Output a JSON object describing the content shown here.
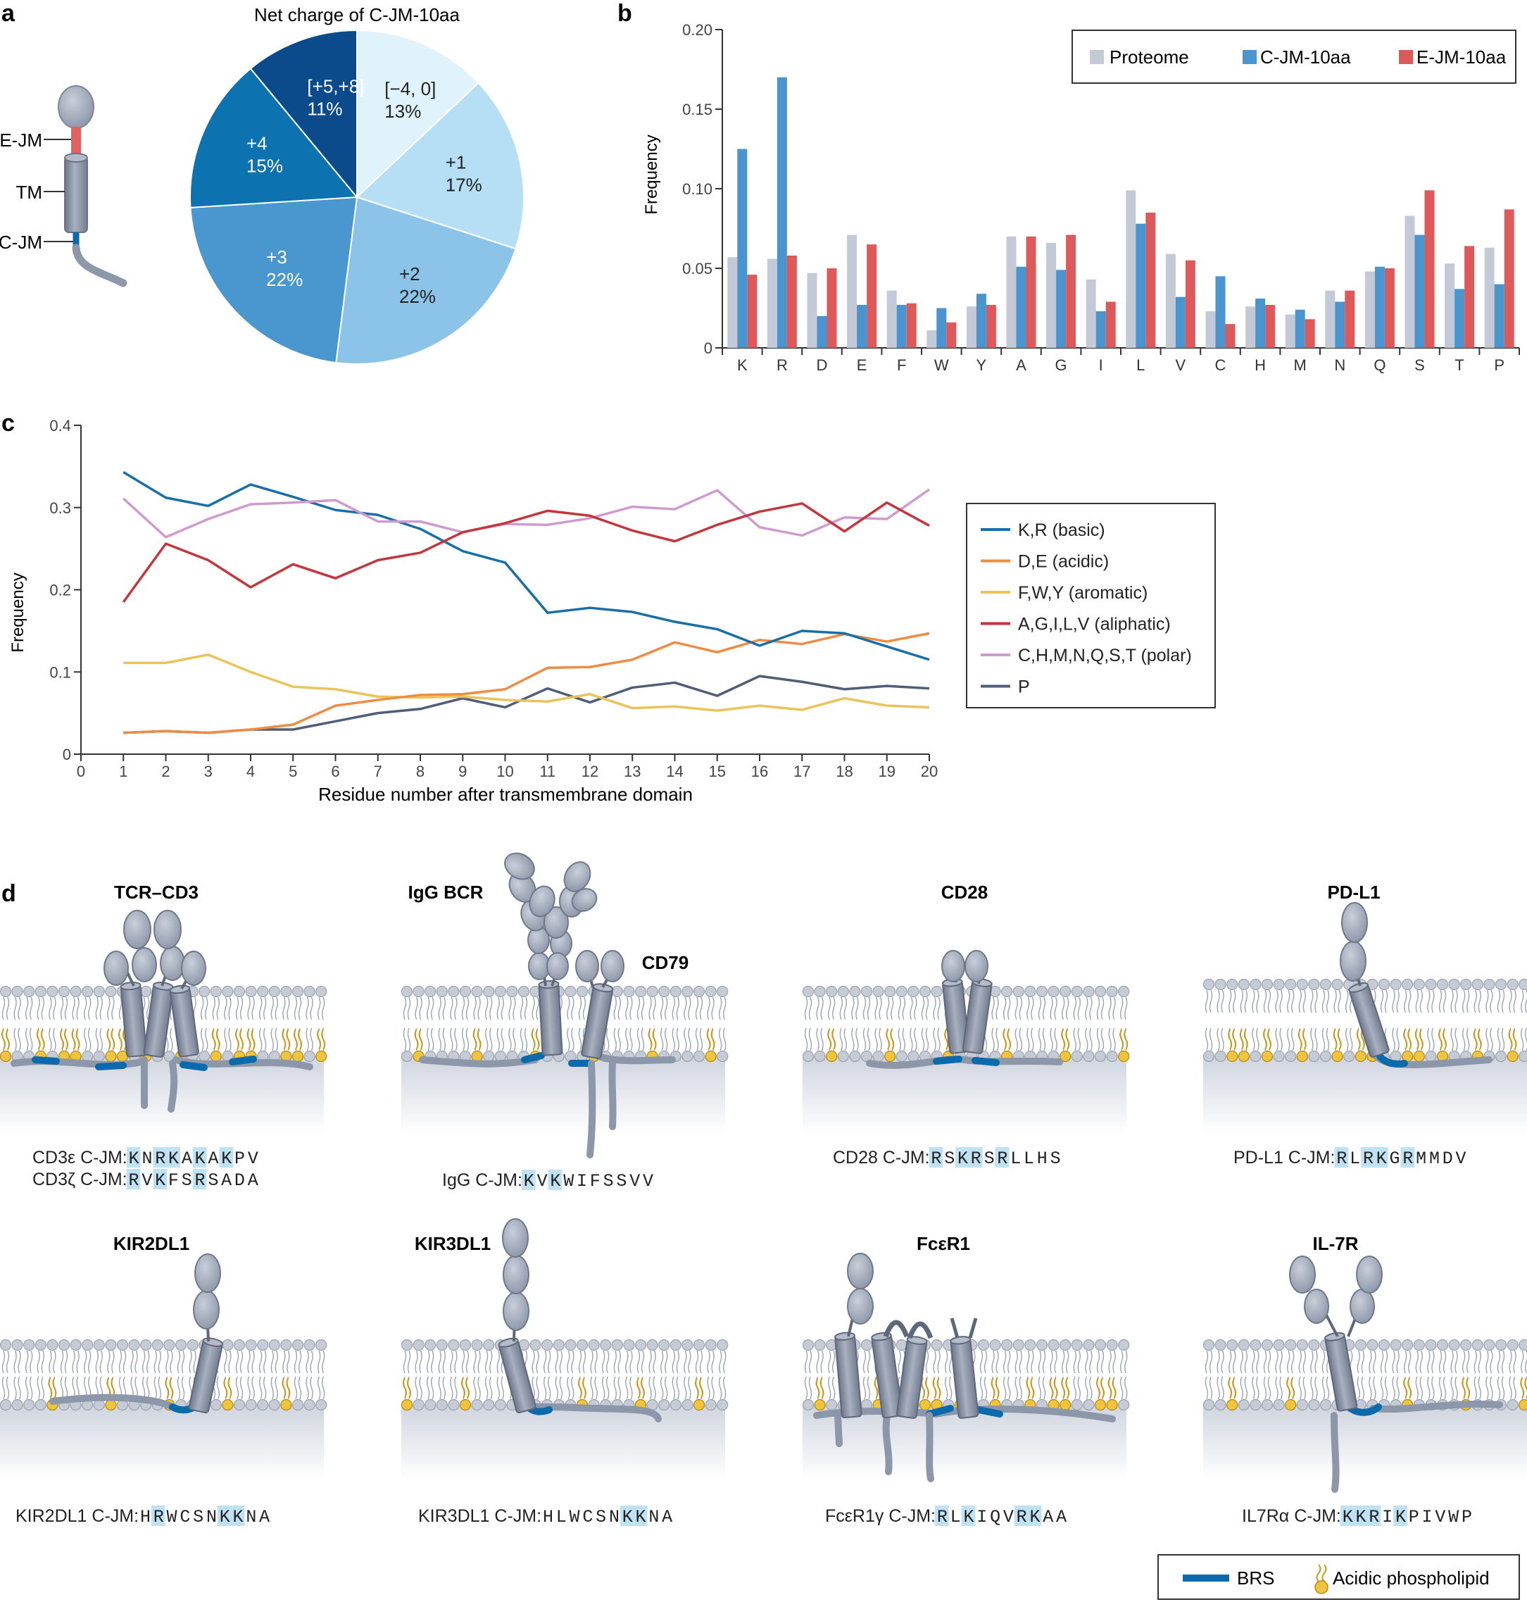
{
  "panel_labels": {
    "a": "a",
    "b": "b",
    "c": "c",
    "d": "d"
  },
  "colors": {
    "dark_navy": "#0b4a8b",
    "blue_mid": "#0d72b0",
    "blue_3": "#4a96cf",
    "blue_2": "#8cc3e8",
    "blue_1": "#b6def5",
    "blue_light": "#e0f2fc",
    "proteome": "#c3c9d6",
    "cjm": "#4a95d0",
    "ejm": "#de5a5a",
    "basic": "#1a6ea7",
    "acidic": "#ef8c43",
    "aromatic": "#e8c45b",
    "aliphatic": "#c1373d",
    "polar": "#cf9bcf",
    "proline": "#4f5d78",
    "brs": "#0a6aac",
    "highlight": "#bfe1f4",
    "lipid_yellow": "#f0c43d",
    "protein_gray": "#8d97aa"
  },
  "panel_a": {
    "schematic_labels": [
      "E-JM",
      "TM",
      "C-JM"
    ],
    "chart_data": {
      "type": "pie",
      "title": "Net charge of C-JM-10aa",
      "labels": [
        "[−4, 0]",
        "+1",
        "+2",
        "+3",
        "+4",
        "[+5,+8]"
      ],
      "percent_labels": [
        "13%",
        "17%",
        "22%",
        "22%",
        "15%",
        "11%"
      ],
      "values": [
        13,
        17,
        22,
        22,
        15,
        11
      ]
    }
  },
  "panel_b": {
    "chart_data": {
      "type": "bar",
      "categories": [
        "K",
        "R",
        "D",
        "E",
        "F",
        "W",
        "Y",
        "A",
        "G",
        "I",
        "L",
        "V",
        "C",
        "H",
        "M",
        "N",
        "Q",
        "S",
        "T",
        "P"
      ],
      "series": [
        {
          "name": "Proteome",
          "values": [
            0.057,
            0.056,
            0.047,
            0.071,
            0.036,
            0.011,
            0.026,
            0.07,
            0.066,
            0.043,
            0.099,
            0.059,
            0.023,
            0.026,
            0.021,
            0.036,
            0.048,
            0.083,
            0.053,
            0.063
          ]
        },
        {
          "name": "C-JM-10aa",
          "values": [
            0.125,
            0.17,
            0.02,
            0.027,
            0.027,
            0.025,
            0.034,
            0.051,
            0.049,
            0.023,
            0.078,
            0.032,
            0.045,
            0.031,
            0.024,
            0.029,
            0.051,
            0.071,
            0.037,
            0.04
          ]
        },
        {
          "name": "E-JM-10aa",
          "values": [
            0.046,
            0.058,
            0.05,
            0.065,
            0.028,
            0.016,
            0.027,
            0.07,
            0.071,
            0.029,
            0.085,
            0.055,
            0.015,
            0.027,
            0.018,
            0.036,
            0.05,
            0.099,
            0.064,
            0.087
          ]
        }
      ],
      "ylabel": "Frequency",
      "ylim": [
        0,
        0.2
      ],
      "yticks": [
        "0",
        "0.05",
        "0.10",
        "0.15",
        "0.20"
      ],
      "legend": "top-right"
    }
  },
  "panel_c": {
    "chart_data": {
      "type": "line",
      "x": [
        1,
        2,
        3,
        4,
        5,
        6,
        7,
        8,
        9,
        10,
        11,
        12,
        13,
        14,
        15,
        16,
        17,
        18,
        19,
        20
      ],
      "xticks": [
        "0",
        "1",
        "2",
        "3",
        "4",
        "5",
        "6",
        "7",
        "8",
        "9",
        "10",
        "11",
        "12",
        "13",
        "14",
        "15",
        "16",
        "17",
        "18",
        "19",
        "20"
      ],
      "series": [
        {
          "name": "K,R (basic)",
          "values": [
            0.343,
            0.312,
            0.302,
            0.328,
            0.313,
            0.297,
            0.291,
            0.274,
            0.247,
            0.233,
            0.172,
            0.178,
            0.173,
            0.161,
            0.152,
            0.132,
            0.15,
            0.147,
            0.131,
            0.115
          ]
        },
        {
          "name": "D,E (acidic)",
          "values": [
            0.026,
            0.028,
            0.026,
            0.03,
            0.036,
            0.059,
            0.066,
            0.072,
            0.073,
            0.079,
            0.105,
            0.106,
            0.115,
            0.136,
            0.124,
            0.139,
            0.134,
            0.146,
            0.137,
            0.147
          ]
        },
        {
          "name": "F,W,Y (aromatic)",
          "values": [
            0.111,
            0.111,
            0.121,
            0.1,
            0.082,
            0.079,
            0.07,
            0.069,
            0.07,
            0.066,
            0.064,
            0.073,
            0.056,
            0.058,
            0.053,
            0.059,
            0.054,
            0.068,
            0.059,
            0.057
          ]
        },
        {
          "name": "A,G,I,L,V (aliphatic)",
          "values": [
            0.185,
            0.256,
            0.236,
            0.203,
            0.231,
            0.214,
            0.236,
            0.245,
            0.27,
            0.281,
            0.296,
            0.29,
            0.272,
            0.259,
            0.279,
            0.295,
            0.305,
            0.271,
            0.306,
            0.278
          ]
        },
        {
          "name": "C,H,M,N,Q,S,T (polar)",
          "values": [
            0.311,
            0.264,
            0.286,
            0.304,
            0.306,
            0.309,
            0.283,
            0.283,
            0.27,
            0.28,
            0.279,
            0.287,
            0.301,
            0.298,
            0.321,
            0.276,
            0.266,
            0.288,
            0.286,
            0.322
          ]
        },
        {
          "name": "P",
          "values": [
            0.026,
            0.028,
            0.026,
            0.03,
            0.03,
            0.04,
            0.05,
            0.055,
            0.068,
            0.057,
            0.08,
            0.063,
            0.081,
            0.087,
            0.071,
            0.095,
            0.088,
            0.079,
            0.083,
            0.08
          ]
        }
      ],
      "xlabel": "Residue number after transmembrane domain",
      "ylabel": "Frequency",
      "xlim": [
        0,
        20
      ],
      "ylim": [
        0,
        0.4
      ],
      "yticks": [
        "0",
        "0.1",
        "0.2",
        "0.3",
        "0.4"
      ],
      "legend": "right"
    }
  },
  "panel_d": {
    "titles": [
      "TCR–CD3",
      "IgG BCR",
      "CD79",
      "CD28",
      "PD-L1",
      "KIR2DL1",
      "KIR3DL1",
      "FcεR1",
      "IL-7R"
    ],
    "sequences": {
      "cd3e": {
        "prefix": "CD3ε C-JM: ",
        "residues": [
          "K",
          "N",
          "R",
          "K",
          "A",
          "K",
          "A",
          "K",
          "P",
          "V"
        ],
        "highlight": [
          0,
          2,
          3,
          5,
          7
        ]
      },
      "cd3z": {
        "prefix": "CD3ζ C-JM: ",
        "residues": [
          "R",
          "V",
          "K",
          "F",
          "S",
          "R",
          "S",
          "A",
          "D",
          "A"
        ],
        "highlight": [
          0,
          2,
          5
        ]
      },
      "igg": {
        "prefix": "IgG C-JM: ",
        "residues": [
          "K",
          "V",
          "K",
          "W",
          "I",
          "F",
          "S",
          "S",
          "V",
          "V"
        ],
        "highlight": [
          0,
          2
        ]
      },
      "cd28": {
        "prefix": "CD28 C-JM: ",
        "residues": [
          "R",
          "S",
          "K",
          "R",
          "S",
          "R",
          "L",
          "L",
          "H",
          "S"
        ],
        "highlight": [
          0,
          2,
          3,
          5
        ]
      },
      "pdl1": {
        "prefix": "PD-L1 C-JM: ",
        "residues": [
          "R",
          "L",
          "R",
          "K",
          "G",
          "R",
          "M",
          "M",
          "D",
          "V"
        ],
        "highlight": [
          0,
          2,
          3,
          5
        ]
      },
      "kir2dl1": {
        "prefix": "KIR2DL1 C-JM: ",
        "residues": [
          "H",
          "R",
          "W",
          "C",
          "S",
          "N",
          "K",
          "K",
          "N",
          "A"
        ],
        "highlight": [
          1,
          6,
          7
        ]
      },
      "kir3dl1": {
        "prefix": "KIR3DL1 C-JM: ",
        "residues": [
          "H",
          "L",
          "W",
          "C",
          "S",
          "N",
          "K",
          "K",
          "N",
          "A"
        ],
        "highlight": [
          6,
          7
        ]
      },
      "fcer1g": {
        "prefix": "FcεR1γ C-JM: ",
        "residues": [
          "R",
          "L",
          "K",
          "I",
          "Q",
          "V",
          "R",
          "K",
          "A",
          "A"
        ],
        "highlight": [
          0,
          2,
          6,
          7
        ]
      },
      "il7ra": {
        "prefix": "IL7Rα C-JM: ",
        "residues": [
          "K",
          "K",
          "R",
          "I",
          "K",
          "P",
          "I",
          "V",
          "W",
          "P"
        ],
        "highlight": [
          0,
          1,
          2,
          4
        ]
      }
    },
    "legend": {
      "brs": "BRS",
      "lipid": "Acidic phospholipid"
    }
  }
}
